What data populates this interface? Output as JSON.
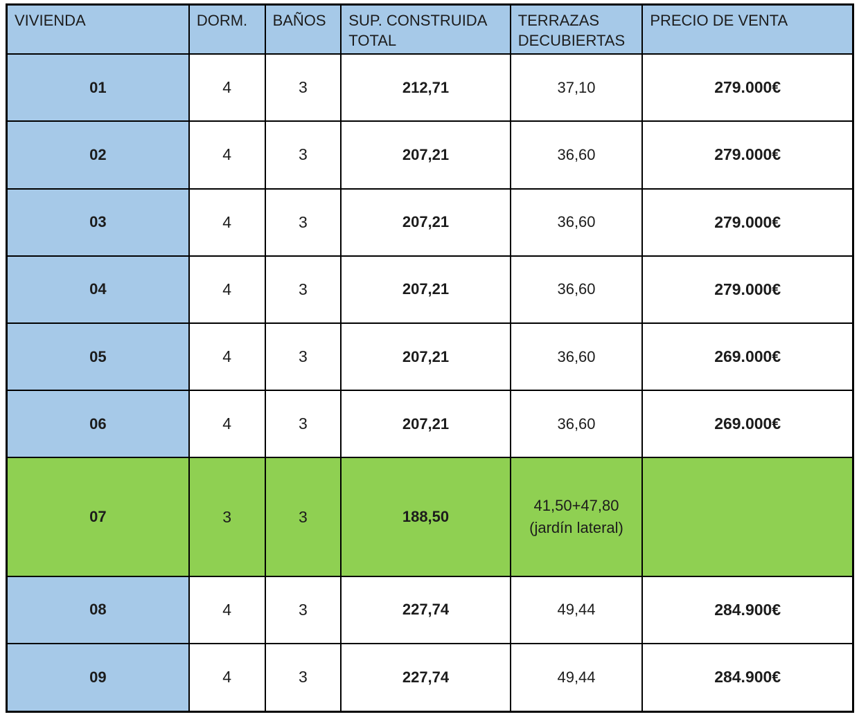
{
  "colors": {
    "header_bg": "#A6C9E8",
    "label_col_bg": "#A6C9E8",
    "highlight_row_bg": "#8FD052",
    "border_color": "#000000",
    "header_text": "#1F2D3B",
    "cell_text": "#1C1C1C"
  },
  "table": {
    "columns": [
      {
        "key": "vivienda",
        "label": "VIVIENDA"
      },
      {
        "key": "dorm",
        "label": "DORM."
      },
      {
        "key": "banos",
        "label": "BAÑOS"
      },
      {
        "key": "sup",
        "label": "SUP. CONSTRUIDA TOTAL"
      },
      {
        "key": "terrazas",
        "label": "TERRAZAS DECUBIERTAS"
      },
      {
        "key": "precio",
        "label": "PRECIO DE VENTA"
      }
    ],
    "rows": [
      {
        "vivienda": "01",
        "dorm": "4",
        "banos": "3",
        "sup": "212,71",
        "terrazas": "37,10",
        "precio": "279.000€",
        "highlighted": false
      },
      {
        "vivienda": "02",
        "dorm": "4",
        "banos": "3",
        "sup": "207,21",
        "terrazas": "36,60",
        "precio": "279.000€",
        "highlighted": false
      },
      {
        "vivienda": "03",
        "dorm": "4",
        "banos": "3",
        "sup": "207,21",
        "terrazas": "36,60",
        "precio": "279.000€",
        "highlighted": false
      },
      {
        "vivienda": "04",
        "dorm": "4",
        "banos": "3",
        "sup": "207,21",
        "terrazas": "36,60",
        "precio": "279.000€",
        "highlighted": false
      },
      {
        "vivienda": "05",
        "dorm": "4",
        "banos": "3",
        "sup": "207,21",
        "terrazas": "36,60",
        "precio": "269.000€",
        "highlighted": false
      },
      {
        "vivienda": "06",
        "dorm": "4",
        "banos": "3",
        "sup": "207,21",
        "terrazas": "36,60",
        "precio": "269.000€",
        "highlighted": false
      },
      {
        "vivienda": "07",
        "dorm": "3",
        "banos": "3",
        "sup": "188,50",
        "terrazas": "41,50+47,80\n(jardín lateral)",
        "precio": "",
        "highlighted": true
      },
      {
        "vivienda": "08",
        "dorm": "4",
        "banos": "3",
        "sup": "227,74",
        "terrazas": "49,44",
        "precio": "284.900€",
        "highlighted": false
      },
      {
        "vivienda": "09",
        "dorm": "4",
        "banos": "3",
        "sup": "227,74",
        "terrazas": "49,44",
        "precio": "284.900€",
        "highlighted": false
      }
    ]
  }
}
